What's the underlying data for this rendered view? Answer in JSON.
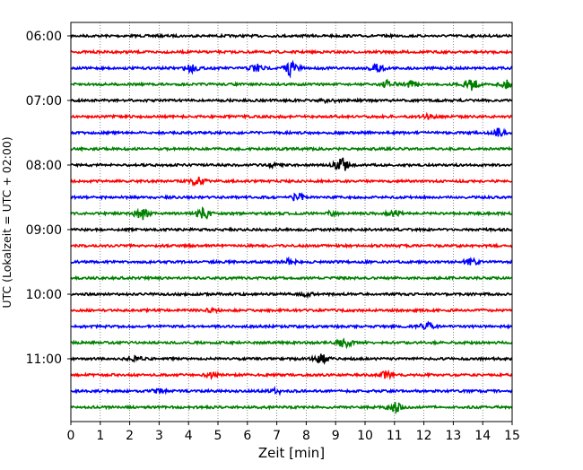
{
  "chart_data": {
    "type": "line",
    "title": "",
    "xlabel": "Zeit  [min]",
    "ylabel": "UTC (Lokalzeit = UTC + 02:00)",
    "xlim": [
      0,
      15
    ],
    "x_ticks": [
      0,
      1,
      2,
      3,
      4,
      5,
      6,
      7,
      8,
      9,
      10,
      11,
      12,
      13,
      14,
      15
    ],
    "y_tick_labels": [
      "06:00",
      "07:00",
      "08:00",
      "09:00",
      "10:00",
      "11:00"
    ],
    "grid": "vertical dotted lines at each minute",
    "trace_minutes": 15,
    "trace_colors": [
      "#000000",
      "#ff0000",
      "#0000ff",
      "#008000"
    ],
    "traces": [
      {
        "start": "06:00",
        "events": []
      },
      {
        "start": "06:15",
        "events": []
      },
      {
        "start": "06:30",
        "events": [
          [
            4.1,
            0.5
          ],
          [
            6.3,
            0.6
          ],
          [
            7.5,
            1.0
          ],
          [
            10.4,
            0.7
          ]
        ]
      },
      {
        "start": "06:45",
        "events": [
          [
            10.8,
            0.5
          ],
          [
            11.6,
            0.4
          ],
          [
            13.6,
            0.8
          ],
          [
            14.8,
            0.5
          ]
        ]
      },
      {
        "start": "07:00",
        "events": [
          [
            8.8,
            0.3
          ]
        ]
      },
      {
        "start": "07:15",
        "events": [
          [
            12.2,
            0.3
          ]
        ]
      },
      {
        "start": "07:30",
        "events": [
          [
            14.5,
            0.6
          ]
        ]
      },
      {
        "start": "07:45",
        "events": []
      },
      {
        "start": "08:00",
        "events": [
          [
            7.0,
            0.3
          ],
          [
            9.2,
            1.0
          ]
        ]
      },
      {
        "start": "08:15",
        "events": [
          [
            4.3,
            0.5
          ]
        ]
      },
      {
        "start": "08:30",
        "events": [
          [
            7.7,
            0.5
          ]
        ]
      },
      {
        "start": "08:45",
        "events": [
          [
            2.4,
            0.8
          ],
          [
            4.5,
            0.7
          ],
          [
            8.9,
            0.3
          ],
          [
            11.0,
            0.4
          ]
        ]
      },
      {
        "start": "09:00",
        "events": []
      },
      {
        "start": "09:15",
        "events": []
      },
      {
        "start": "09:30",
        "events": [
          [
            7.4,
            0.3
          ],
          [
            13.6,
            0.4
          ]
        ]
      },
      {
        "start": "09:45",
        "events": []
      },
      {
        "start": "10:00",
        "events": [
          [
            8.0,
            0.2
          ]
        ]
      },
      {
        "start": "10:15",
        "events": [
          [
            4.8,
            0.2
          ]
        ]
      },
      {
        "start": "10:30",
        "events": [
          [
            12.1,
            0.6
          ]
        ]
      },
      {
        "start": "10:45",
        "events": [
          [
            9.3,
            0.6
          ]
        ]
      },
      {
        "start": "11:00",
        "events": [
          [
            2.2,
            0.3
          ],
          [
            8.5,
            0.6
          ]
        ]
      },
      {
        "start": "11:15",
        "events": [
          [
            4.8,
            0.3
          ],
          [
            10.7,
            0.4
          ]
        ]
      },
      {
        "start": "11:30",
        "events": [
          [
            3.0,
            0.3
          ],
          [
            7.0,
            0.3
          ]
        ]
      },
      {
        "start": "11:45",
        "events": [
          [
            11.0,
            0.7
          ]
        ]
      }
    ]
  }
}
